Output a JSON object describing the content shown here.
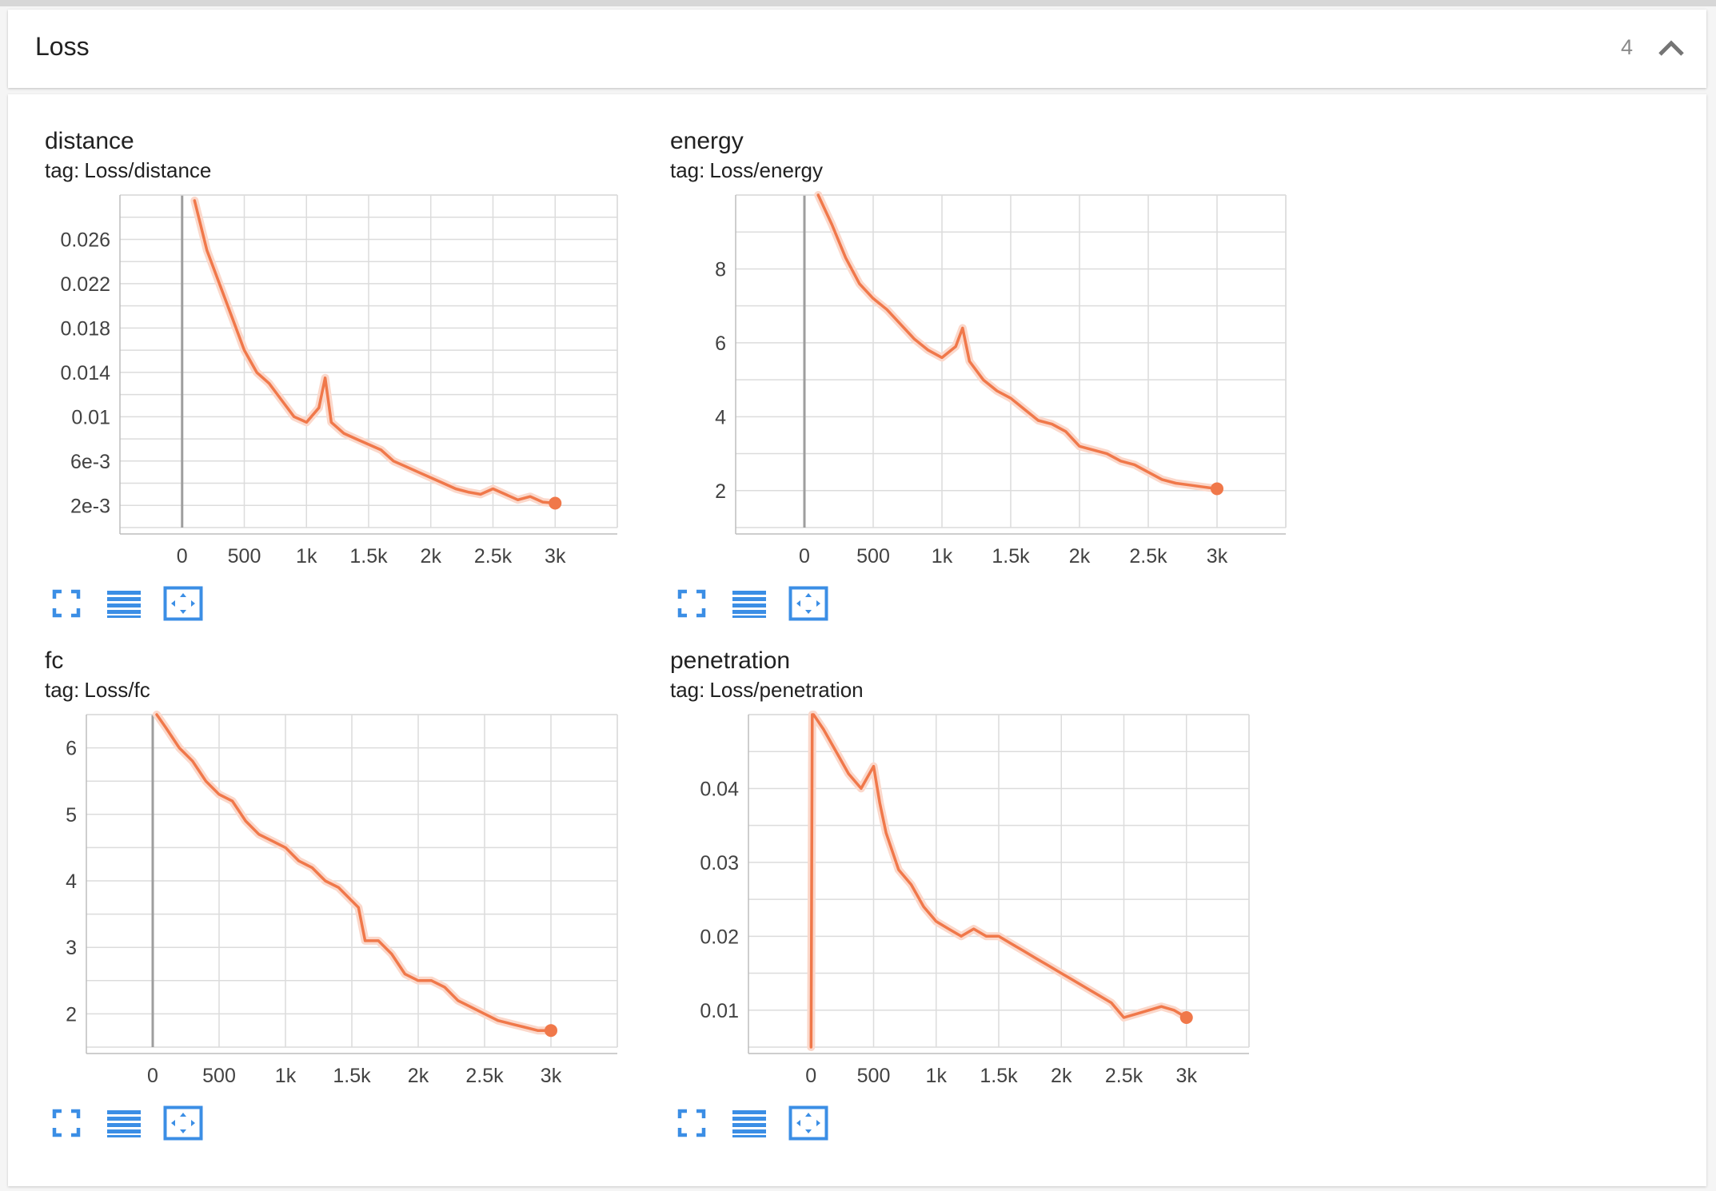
{
  "section": {
    "title": "Loss",
    "count": "4",
    "toggle_icon": "chevron-up-icon"
  },
  "colors": {
    "series": "#f0784a",
    "series_faint": "#fbd8cb",
    "grid": "#dcdcdc",
    "zero_axis": "#9e9e9e",
    "button": "#3b8ee5"
  },
  "cards": [
    {
      "title": "distance",
      "tag_label": "tag:",
      "tag": "Loss/distance",
      "buttons": [
        "fullscreen-icon",
        "data-table-icon",
        "fit-domain-icon"
      ]
    },
    {
      "title": "energy",
      "tag_label": "tag:",
      "tag": "Loss/energy",
      "buttons": [
        "fullscreen-icon",
        "data-table-icon",
        "fit-domain-icon"
      ]
    },
    {
      "title": "fc",
      "tag_label": "tag:",
      "tag": "Loss/fc",
      "buttons": [
        "fullscreen-icon",
        "data-table-icon",
        "fit-domain-icon"
      ]
    },
    {
      "title": "penetration",
      "tag_label": "tag:",
      "tag": "Loss/penetration",
      "buttons": [
        "fullscreen-icon",
        "data-table-icon",
        "fit-domain-icon"
      ]
    }
  ],
  "chart_data": [
    {
      "type": "line",
      "xlim": [
        -500,
        3500
      ],
      "ylim": [
        0,
        0.03
      ],
      "xticks": [
        0,
        500,
        1000,
        1500,
        2000,
        2500,
        3000
      ],
      "xtick_labels": [
        "0",
        "500",
        "1k",
        "1.5k",
        "2k",
        "2.5k",
        "3k"
      ],
      "yticks": [
        0.002,
        0.006,
        0.01,
        0.014,
        0.018,
        0.022,
        0.026
      ],
      "ytick_labels": [
        "2e-3",
        "6e-3",
        "0.01",
        "0.014",
        "0.018",
        "0.022",
        "0.026"
      ],
      "grid": true,
      "series": [
        {
          "x": [
            100,
            200,
            300,
            400,
            500,
            600,
            700,
            800,
            900,
            1000,
            1100,
            1150,
            1200,
            1300,
            1400,
            1500,
            1600,
            1700,
            1800,
            1900,
            2000,
            2100,
            2200,
            2300,
            2400,
            2500,
            2600,
            2700,
            2800,
            2900,
            3000
          ],
          "y": [
            0.0295,
            0.025,
            0.022,
            0.019,
            0.016,
            0.014,
            0.013,
            0.0115,
            0.01,
            0.0095,
            0.0108,
            0.0135,
            0.0095,
            0.0085,
            0.008,
            0.0075,
            0.007,
            0.006,
            0.0055,
            0.005,
            0.0045,
            0.004,
            0.0035,
            0.0032,
            0.003,
            0.0035,
            0.003,
            0.0025,
            0.0028,
            0.0023,
            0.0022
          ]
        }
      ]
    },
    {
      "type": "line",
      "xlim": [
        -500,
        3500
      ],
      "ylim": [
        1,
        10
      ],
      "xticks": [
        0,
        500,
        1000,
        1500,
        2000,
        2500,
        3000
      ],
      "xtick_labels": [
        "0",
        "500",
        "1k",
        "1.5k",
        "2k",
        "2.5k",
        "3k"
      ],
      "yticks": [
        2,
        4,
        6,
        8
      ],
      "ytick_labels": [
        "2",
        "4",
        "6",
        "8"
      ],
      "grid": true,
      "series": [
        {
          "x": [
            100,
            200,
            300,
            400,
            500,
            600,
            700,
            800,
            900,
            1000,
            1100,
            1150,
            1200,
            1300,
            1400,
            1500,
            1600,
            1700,
            1800,
            1900,
            2000,
            2100,
            2200,
            2300,
            2400,
            2500,
            2600,
            2700,
            2800,
            2900,
            3000
          ],
          "y": [
            10,
            9.2,
            8.3,
            7.6,
            7.2,
            6.9,
            6.5,
            6.1,
            5.8,
            5.6,
            5.9,
            6.4,
            5.5,
            5.0,
            4.7,
            4.5,
            4.2,
            3.9,
            3.8,
            3.6,
            3.2,
            3.1,
            3.0,
            2.8,
            2.7,
            2.5,
            2.3,
            2.2,
            2.15,
            2.1,
            2.05
          ]
        }
      ]
    },
    {
      "type": "line",
      "xlim": [
        -500,
        3500
      ],
      "ylim": [
        1.5,
        6.5
      ],
      "xticks": [
        0,
        500,
        1000,
        1500,
        2000,
        2500,
        3000
      ],
      "xtick_labels": [
        "0",
        "500",
        "1k",
        "1.5k",
        "2k",
        "2.5k",
        "3k"
      ],
      "yticks": [
        2,
        3,
        4,
        5,
        6
      ],
      "ytick_labels": [
        "2",
        "3",
        "4",
        "5",
        "6"
      ],
      "grid": true,
      "series": [
        {
          "x": [
            30,
            100,
            200,
            300,
            400,
            500,
            600,
            700,
            800,
            900,
            1000,
            1100,
            1200,
            1300,
            1400,
            1500,
            1550,
            1600,
            1700,
            1800,
            1900,
            2000,
            2100,
            2200,
            2300,
            2400,
            2500,
            2600,
            2700,
            2800,
            2900,
            3000
          ],
          "y": [
            6.5,
            6.3,
            6.0,
            5.8,
            5.5,
            5.3,
            5.2,
            4.9,
            4.7,
            4.6,
            4.5,
            4.3,
            4.2,
            4.0,
            3.9,
            3.7,
            3.6,
            3.1,
            3.1,
            2.9,
            2.6,
            2.5,
            2.5,
            2.4,
            2.2,
            2.1,
            2.0,
            1.9,
            1.85,
            1.8,
            1.75,
            1.75
          ]
        }
      ]
    },
    {
      "type": "line",
      "xlim": [
        -500,
        3500
      ],
      "ylim": [
        0.005,
        0.05
      ],
      "xticks": [
        0,
        500,
        1000,
        1500,
        2000,
        2500,
        3000
      ],
      "xtick_labels": [
        "0",
        "500",
        "1k",
        "1.5k",
        "2k",
        "2.5k",
        "3k"
      ],
      "yticks": [
        0.01,
        0.02,
        0.03,
        0.04
      ],
      "ytick_labels": [
        "0.01",
        "0.02",
        "0.03",
        "0.04"
      ],
      "grid": true,
      "series": [
        {
          "x": [
            0,
            10,
            20,
            100,
            200,
            300,
            400,
            500,
            550,
            600,
            700,
            800,
            900,
            1000,
            1100,
            1200,
            1300,
            1400,
            1500,
            1600,
            1700,
            1800,
            1900,
            2000,
            2100,
            2200,
            2300,
            2400,
            2500,
            2600,
            2700,
            2800,
            2900,
            3000
          ],
          "y": [
            0.005,
            0.05,
            0.05,
            0.048,
            0.045,
            0.042,
            0.04,
            0.043,
            0.038,
            0.034,
            0.029,
            0.027,
            0.024,
            0.022,
            0.021,
            0.02,
            0.021,
            0.02,
            0.02,
            0.019,
            0.018,
            0.017,
            0.016,
            0.015,
            0.014,
            0.013,
            0.012,
            0.011,
            0.009,
            0.0095,
            0.01,
            0.0105,
            0.01,
            0.009
          ]
        }
      ]
    }
  ]
}
